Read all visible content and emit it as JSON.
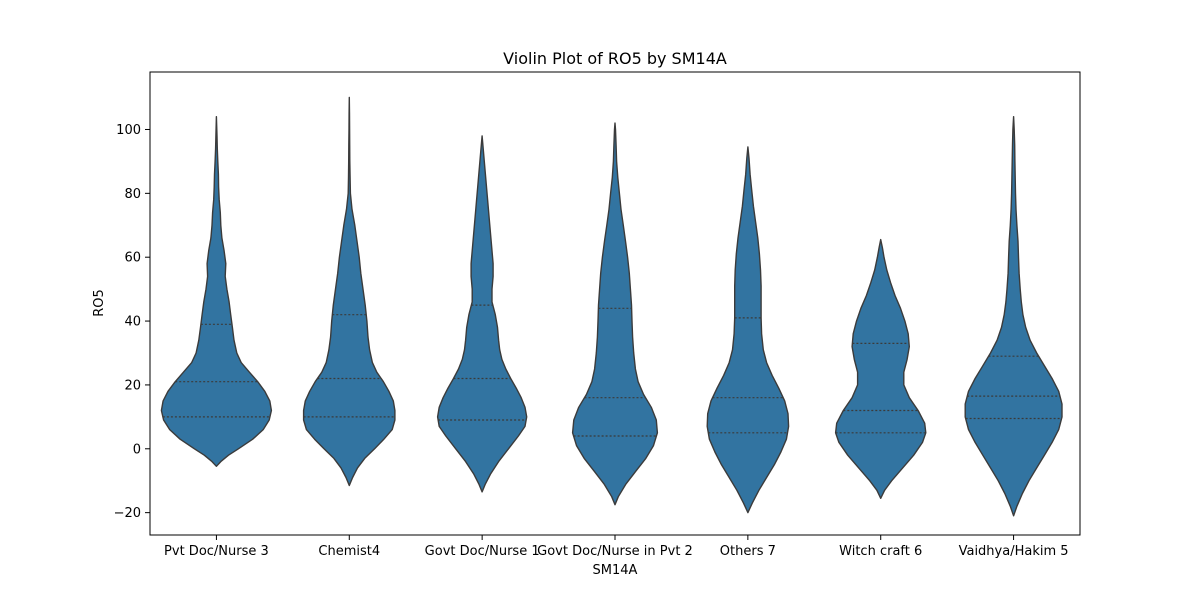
{
  "chart_data": {
    "type": "violin",
    "title": "Violin Plot of RO5 by SM14A",
    "xlabel": "SM14A",
    "ylabel": "RO5",
    "ylim": [
      -27,
      118
    ],
    "yticks": [
      -20,
      0,
      20,
      40,
      60,
      80,
      100
    ],
    "ytick_labels": [
      "−20",
      "0",
      "20",
      "40",
      "60",
      "80",
      "100"
    ],
    "grid": false,
    "legend": "none",
    "color": "#3274a1",
    "edge_color": "#3b3b3b",
    "categories": [
      "Pvt Doc/Nurse 3",
      "Chemist4",
      "Govt Doc/Nurse 1",
      "Govt Doc/Nurse in Pvt 2",
      "Others 7",
      "Witch craft 6",
      "Vaidhya/Hakim 5"
    ],
    "violins": [
      {
        "category": "Pvt Doc/Nurse 3",
        "quartiles": [
          10,
          21,
          39
        ],
        "profile": [
          [
            -5.5,
            0.0
          ],
          [
            -4,
            0.08
          ],
          [
            -2,
            0.22
          ],
          [
            0,
            0.4
          ],
          [
            3,
            0.66
          ],
          [
            6,
            0.85
          ],
          [
            9,
            0.96
          ],
          [
            12,
            1.0
          ],
          [
            15,
            0.97
          ],
          [
            18,
            0.88
          ],
          [
            21,
            0.75
          ],
          [
            24,
            0.6
          ],
          [
            27,
            0.45
          ],
          [
            30,
            0.37
          ],
          [
            34,
            0.32
          ],
          [
            38,
            0.29
          ],
          [
            42,
            0.26
          ],
          [
            46,
            0.23
          ],
          [
            50,
            0.19
          ],
          [
            54,
            0.16
          ],
          [
            58,
            0.17
          ],
          [
            62,
            0.14
          ],
          [
            66,
            0.1
          ],
          [
            70,
            0.08
          ],
          [
            74,
            0.07
          ],
          [
            78,
            0.05
          ],
          [
            82,
            0.04
          ],
          [
            86,
            0.035
          ],
          [
            90,
            0.025
          ],
          [
            94,
            0.015
          ],
          [
            98,
            0.01
          ],
          [
            104,
            0.0
          ]
        ]
      },
      {
        "category": "Chemist4",
        "quartiles": [
          10,
          22,
          42
        ],
        "profile": [
          [
            -11.5,
            0.0
          ],
          [
            -9,
            0.06
          ],
          [
            -6,
            0.15
          ],
          [
            -3,
            0.28
          ],
          [
            0,
            0.46
          ],
          [
            3,
            0.63
          ],
          [
            6,
            0.78
          ],
          [
            9,
            0.83
          ],
          [
            12,
            0.83
          ],
          [
            15,
            0.8
          ],
          [
            18,
            0.72
          ],
          [
            21,
            0.62
          ],
          [
            24,
            0.5
          ],
          [
            27,
            0.42
          ],
          [
            31,
            0.37
          ],
          [
            35,
            0.34
          ],
          [
            40,
            0.32
          ],
          [
            45,
            0.29
          ],
          [
            50,
            0.25
          ],
          [
            55,
            0.21
          ],
          [
            60,
            0.18
          ],
          [
            65,
            0.14
          ],
          [
            70,
            0.1
          ],
          [
            75,
            0.05
          ],
          [
            80,
            0.02
          ],
          [
            85,
            0.015
          ],
          [
            90,
            0.01
          ],
          [
            95,
            0.008
          ],
          [
            100,
            0.005
          ],
          [
            105,
            0.003
          ],
          [
            110,
            0.0
          ]
        ]
      },
      {
        "category": "Govt Doc/Nurse 1",
        "quartiles": [
          9,
          22,
          45
        ],
        "profile": [
          [
            -13.5,
            0.0
          ],
          [
            -11,
            0.06
          ],
          [
            -8,
            0.15
          ],
          [
            -4,
            0.3
          ],
          [
            0,
            0.48
          ],
          [
            4,
            0.66
          ],
          [
            7,
            0.78
          ],
          [
            10,
            0.81
          ],
          [
            13,
            0.78
          ],
          [
            16,
            0.71
          ],
          [
            19,
            0.62
          ],
          [
            22,
            0.52
          ],
          [
            25,
            0.43
          ],
          [
            28,
            0.36
          ],
          [
            31,
            0.32
          ],
          [
            34,
            0.3
          ],
          [
            38,
            0.28
          ],
          [
            42,
            0.24
          ],
          [
            46,
            0.18
          ],
          [
            50,
            0.18
          ],
          [
            54,
            0.2
          ],
          [
            58,
            0.2
          ],
          [
            62,
            0.18
          ],
          [
            66,
            0.16
          ],
          [
            70,
            0.14
          ],
          [
            74,
            0.12
          ],
          [
            78,
            0.1
          ],
          [
            82,
            0.08
          ],
          [
            86,
            0.06
          ],
          [
            90,
            0.04
          ],
          [
            94,
            0.02
          ],
          [
            98,
            0.0
          ]
        ]
      },
      {
        "category": "Govt Doc/Nurse in Pvt 2",
        "quartiles": [
          4,
          16,
          44
        ],
        "profile": [
          [
            -17.5,
            0.0
          ],
          [
            -15,
            0.06
          ],
          [
            -11,
            0.2
          ],
          [
            -7,
            0.38
          ],
          [
            -3,
            0.56
          ],
          [
            1,
            0.7
          ],
          [
            5,
            0.77
          ],
          [
            9,
            0.75
          ],
          [
            13,
            0.66
          ],
          [
            17,
            0.52
          ],
          [
            21,
            0.42
          ],
          [
            25,
            0.37
          ],
          [
            30,
            0.34
          ],
          [
            35,
            0.32
          ],
          [
            40,
            0.31
          ],
          [
            45,
            0.3
          ],
          [
            50,
            0.28
          ],
          [
            55,
            0.26
          ],
          [
            60,
            0.23
          ],
          [
            65,
            0.19
          ],
          [
            70,
            0.15
          ],
          [
            75,
            0.11
          ],
          [
            80,
            0.08
          ],
          [
            85,
            0.05
          ],
          [
            90,
            0.03
          ],
          [
            95,
            0.02
          ],
          [
            100,
            0.01
          ],
          [
            102,
            0.0
          ]
        ]
      },
      {
        "category": "Others 7",
        "quartiles": [
          5,
          16,
          41
        ],
        "profile": [
          [
            -20,
            0.0
          ],
          [
            -17,
            0.08
          ],
          [
            -13,
            0.2
          ],
          [
            -9,
            0.34
          ],
          [
            -5,
            0.48
          ],
          [
            -1,
            0.6
          ],
          [
            3,
            0.7
          ],
          [
            7,
            0.74
          ],
          [
            11,
            0.73
          ],
          [
            15,
            0.67
          ],
          [
            19,
            0.56
          ],
          [
            23,
            0.44
          ],
          [
            27,
            0.34
          ],
          [
            31,
            0.28
          ],
          [
            36,
            0.25
          ],
          [
            41,
            0.24
          ],
          [
            46,
            0.24
          ],
          [
            51,
            0.24
          ],
          [
            56,
            0.23
          ],
          [
            61,
            0.21
          ],
          [
            66,
            0.18
          ],
          [
            71,
            0.14
          ],
          [
            76,
            0.1
          ],
          [
            81,
            0.07
          ],
          [
            86,
            0.04
          ],
          [
            91,
            0.02
          ],
          [
            94.5,
            0.0
          ]
        ]
      },
      {
        "category": "Witch craft 6",
        "quartiles": [
          5,
          12,
          33
        ],
        "profile": [
          [
            -15.5,
            0.0
          ],
          [
            -13,
            0.07
          ],
          [
            -10,
            0.2
          ],
          [
            -6,
            0.4
          ],
          [
            -2,
            0.6
          ],
          [
            2,
            0.76
          ],
          [
            5,
            0.82
          ],
          [
            8,
            0.8
          ],
          [
            12,
            0.68
          ],
          [
            16,
            0.52
          ],
          [
            20,
            0.42
          ],
          [
            24,
            0.42
          ],
          [
            28,
            0.48
          ],
          [
            32,
            0.52
          ],
          [
            36,
            0.5
          ],
          [
            40,
            0.44
          ],
          [
            44,
            0.36
          ],
          [
            48,
            0.26
          ],
          [
            52,
            0.18
          ],
          [
            56,
            0.11
          ],
          [
            60,
            0.06
          ],
          [
            63,
            0.03
          ],
          [
            65.5,
            0.0
          ]
        ]
      },
      {
        "category": "Vaidhya/Hakim 5",
        "quartiles": [
          9.5,
          16.5,
          29
        ],
        "profile": [
          [
            -21,
            0.0
          ],
          [
            -18,
            0.06
          ],
          [
            -14,
            0.16
          ],
          [
            -10,
            0.28
          ],
          [
            -6,
            0.42
          ],
          [
            -2,
            0.56
          ],
          [
            2,
            0.7
          ],
          [
            6,
            0.82
          ],
          [
            10,
            0.88
          ],
          [
            14,
            0.88
          ],
          [
            18,
            0.82
          ],
          [
            22,
            0.7
          ],
          [
            26,
            0.56
          ],
          [
            30,
            0.42
          ],
          [
            34,
            0.3
          ],
          [
            38,
            0.22
          ],
          [
            42,
            0.17
          ],
          [
            46,
            0.14
          ],
          [
            50,
            0.12
          ],
          [
            55,
            0.1
          ],
          [
            60,
            0.09
          ],
          [
            65,
            0.08
          ],
          [
            70,
            0.06
          ],
          [
            75,
            0.045
          ],
          [
            80,
            0.035
          ],
          [
            85,
            0.03
          ],
          [
            90,
            0.025
          ],
          [
            95,
            0.02
          ],
          [
            100,
            0.012
          ],
          [
            104,
            0.0
          ]
        ]
      }
    ]
  }
}
